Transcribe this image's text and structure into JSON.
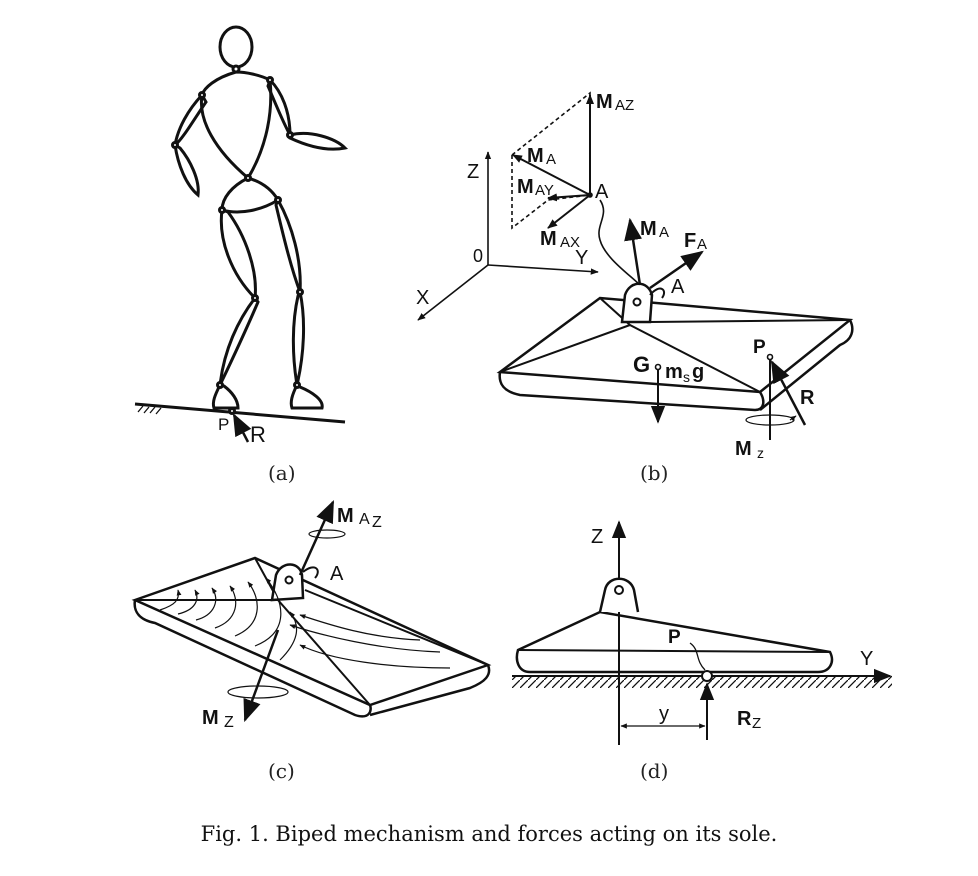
{
  "figure": {
    "caption": "Fig. 1. Biped mechanism and forces acting on its sole.",
    "panels": [
      {
        "id": "a",
        "label": "(a)",
        "labels": {
          "p": "P",
          "r": "R"
        }
      },
      {
        "id": "b",
        "label": "(b)",
        "labels": {
          "maz": "AZ",
          "ma_top": "A",
          "may": "AY",
          "max": "AX",
          "a_top": "A",
          "a_sole": "A",
          "z": "Z",
          "origin": "0",
          "y": "Y",
          "x": "X",
          "ma_sole": "A",
          "fa": "A",
          "g": "G",
          "msg_s": "s",
          "p": "P",
          "r": "R",
          "mz": "z"
        }
      },
      {
        "id": "c",
        "label": "(c)",
        "labels": {
          "maz": "A",
          "maz_sub": "Z",
          "a": "A",
          "mz": "Z"
        }
      },
      {
        "id": "d",
        "label": "(d)",
        "labels": {
          "z": "Z",
          "y_axis": "Y",
          "p": "P",
          "y_dist": "y",
          "rz": "Z"
        }
      }
    ]
  }
}
